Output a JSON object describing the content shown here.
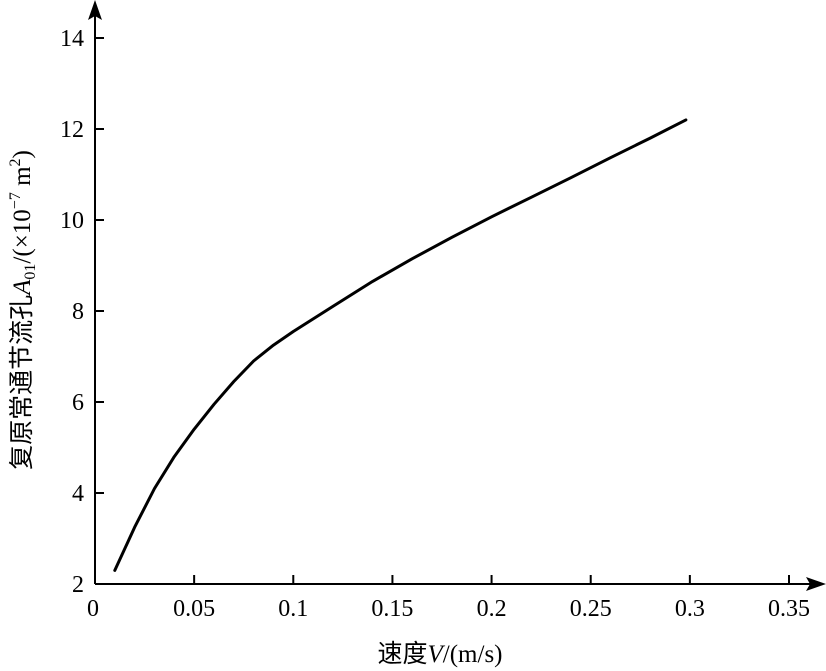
{
  "chart_data": {
    "type": "line",
    "xlabel": {
      "prefix": "速度",
      "symbol": "V",
      "unit": "/(m/s)"
    },
    "ylabel": {
      "prefix": "复原常通节流孔",
      "symbol": "A",
      "subscript": "01",
      "unit_open": "/(×10",
      "unit_exp": "−7",
      "unit_mid": " m",
      "unit_exp2": "2",
      "unit_close": ")"
    },
    "xlim": [
      0,
      0.35
    ],
    "ylim": [
      2,
      14
    ],
    "x_ticks": [
      0,
      0.05,
      0.1,
      0.15,
      0.2,
      0.25,
      0.3,
      0.35
    ],
    "x_tick_labels": [
      "0",
      "0.05",
      "0.1",
      "0.15",
      "0.2",
      "0.25",
      "0.3",
      "0.35"
    ],
    "y_ticks": [
      2,
      4,
      6,
      8,
      10,
      12,
      14
    ],
    "y_tick_labels": [
      "2",
      "4",
      "6",
      "8",
      "10",
      "12",
      "14"
    ],
    "grid": false,
    "series": [
      {
        "x": [
          0.01,
          0.02,
          0.03,
          0.04,
          0.05,
          0.06,
          0.07,
          0.08,
          0.09,
          0.1,
          0.12,
          0.14,
          0.16,
          0.18,
          0.2,
          0.22,
          0.24,
          0.26,
          0.28,
          0.298
        ],
        "y": [
          2.3,
          3.25,
          4.1,
          4.8,
          5.4,
          5.95,
          6.45,
          6.9,
          7.25,
          7.55,
          8.1,
          8.65,
          9.15,
          9.62,
          10.07,
          10.5,
          10.93,
          11.37,
          11.8,
          12.2
        ]
      }
    ]
  }
}
